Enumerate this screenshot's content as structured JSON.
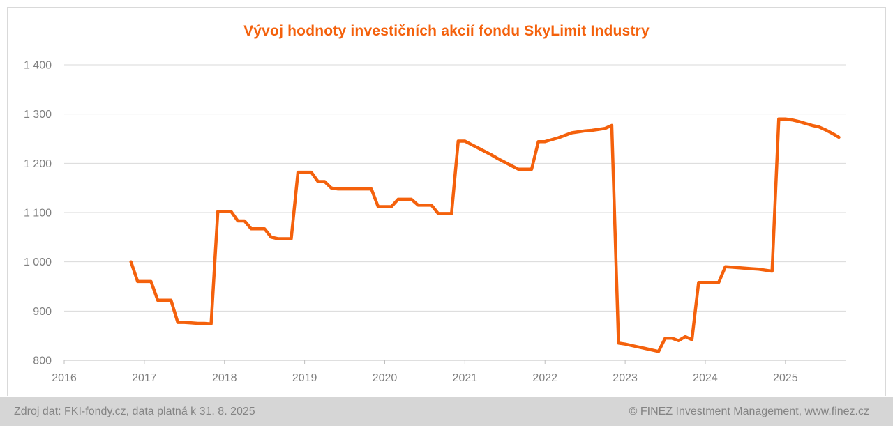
{
  "title": "Vývoj hodnoty investičních akcií fondu SkyLimit Industry",
  "footer": {
    "left": "Zdroj dat: FKI-fondy.cz, data platná k 31. 8. 2025",
    "right": "© FINEZ Investment Management, www.finez.cz"
  },
  "colors": {
    "accent": "#F4610C",
    "grid": "#D9D9D9",
    "axis": "#BFBFBF",
    "tick_label": "#808080",
    "footer_bg": "#D6D6D6",
    "footer_text": "#848484"
  },
  "chart_data": {
    "type": "line",
    "title": "Vývoj hodnoty investičních akcií fondu SkyLimit Industry",
    "xlabel": "",
    "ylabel": "",
    "xlim": [
      2016,
      2025.75
    ],
    "ylim": [
      800,
      1400
    ],
    "grid": "horizontal",
    "legend": "none",
    "x_ticks": [
      2016,
      2017,
      2018,
      2019,
      2020,
      2021,
      2022,
      2023,
      2024,
      2025
    ],
    "y_ticks": [
      {
        "value": 800,
        "label": "800"
      },
      {
        "value": 900,
        "label": "900"
      },
      {
        "value": 1000,
        "label": "1 000"
      },
      {
        "value": 1100,
        "label": "1 100"
      },
      {
        "value": 1200,
        "label": "1 200"
      },
      {
        "value": 1300,
        "label": "1 300"
      },
      {
        "value": 1400,
        "label": "1 400"
      }
    ],
    "series": [
      {
        "name": "SkyLimit Industry",
        "points": [
          [
            2016.833,
            1000
          ],
          [
            2016.917,
            960
          ],
          [
            2017.0,
            960
          ],
          [
            2017.083,
            960
          ],
          [
            2017.167,
            922
          ],
          [
            2017.25,
            922
          ],
          [
            2017.333,
            922
          ],
          [
            2017.417,
            877
          ],
          [
            2017.5,
            877
          ],
          [
            2017.583,
            876
          ],
          [
            2017.667,
            875
          ],
          [
            2017.75,
            875
          ],
          [
            2017.833,
            874
          ],
          [
            2017.917,
            1102
          ],
          [
            2018.0,
            1102
          ],
          [
            2018.083,
            1102
          ],
          [
            2018.167,
            1083
          ],
          [
            2018.25,
            1083
          ],
          [
            2018.333,
            1067
          ],
          [
            2018.417,
            1067
          ],
          [
            2018.5,
            1067
          ],
          [
            2018.583,
            1050
          ],
          [
            2018.667,
            1047
          ],
          [
            2018.75,
            1047
          ],
          [
            2018.833,
            1047
          ],
          [
            2018.917,
            1182
          ],
          [
            2019.0,
            1182
          ],
          [
            2019.083,
            1182
          ],
          [
            2019.167,
            1163
          ],
          [
            2019.25,
            1163
          ],
          [
            2019.333,
            1150
          ],
          [
            2019.417,
            1148
          ],
          [
            2019.5,
            1148
          ],
          [
            2019.583,
            1148
          ],
          [
            2019.667,
            1148
          ],
          [
            2019.75,
            1148
          ],
          [
            2019.833,
            1148
          ],
          [
            2019.917,
            1112
          ],
          [
            2020.0,
            1112
          ],
          [
            2020.083,
            1112
          ],
          [
            2020.167,
            1127
          ],
          [
            2020.25,
            1127
          ],
          [
            2020.333,
            1127
          ],
          [
            2020.417,
            1115
          ],
          [
            2020.5,
            1115
          ],
          [
            2020.583,
            1115
          ],
          [
            2020.667,
            1098
          ],
          [
            2020.75,
            1098
          ],
          [
            2020.833,
            1098
          ],
          [
            2020.917,
            1245
          ],
          [
            2021.0,
            1245
          ],
          [
            2021.083,
            1238
          ],
          [
            2021.167,
            1231
          ],
          [
            2021.25,
            1224
          ],
          [
            2021.333,
            1217
          ],
          [
            2021.417,
            1209
          ],
          [
            2021.5,
            1202
          ],
          [
            2021.583,
            1195
          ],
          [
            2021.667,
            1188
          ],
          [
            2021.75,
            1188
          ],
          [
            2021.833,
            1188
          ],
          [
            2021.917,
            1244
          ],
          [
            2022.0,
            1244
          ],
          [
            2022.083,
            1248
          ],
          [
            2022.167,
            1252
          ],
          [
            2022.25,
            1257
          ],
          [
            2022.333,
            1262
          ],
          [
            2022.417,
            1264
          ],
          [
            2022.5,
            1266
          ],
          [
            2022.583,
            1267
          ],
          [
            2022.667,
            1269
          ],
          [
            2022.75,
            1271
          ],
          [
            2022.833,
            1277
          ],
          [
            2022.917,
            835
          ],
          [
            2023.0,
            833
          ],
          [
            2023.083,
            830
          ],
          [
            2023.167,
            827
          ],
          [
            2023.25,
            824
          ],
          [
            2023.333,
            821
          ],
          [
            2023.417,
            818
          ],
          [
            2023.5,
            845
          ],
          [
            2023.583,
            845
          ],
          [
            2023.667,
            840
          ],
          [
            2023.75,
            848
          ],
          [
            2023.833,
            842
          ],
          [
            2023.917,
            958
          ],
          [
            2024.0,
            958
          ],
          [
            2024.083,
            958
          ],
          [
            2024.167,
            958
          ],
          [
            2024.25,
            990
          ],
          [
            2024.333,
            989
          ],
          [
            2024.417,
            988
          ],
          [
            2024.5,
            987
          ],
          [
            2024.583,
            986
          ],
          [
            2024.667,
            985
          ],
          [
            2024.75,
            983
          ],
          [
            2024.833,
            981
          ],
          [
            2024.917,
            1290
          ],
          [
            2025.0,
            1290
          ],
          [
            2025.083,
            1288
          ],
          [
            2025.167,
            1285
          ],
          [
            2025.25,
            1281
          ],
          [
            2025.333,
            1277
          ],
          [
            2025.417,
            1274
          ],
          [
            2025.5,
            1268
          ],
          [
            2025.583,
            1261
          ],
          [
            2025.667,
            1253
          ]
        ]
      }
    ]
  }
}
